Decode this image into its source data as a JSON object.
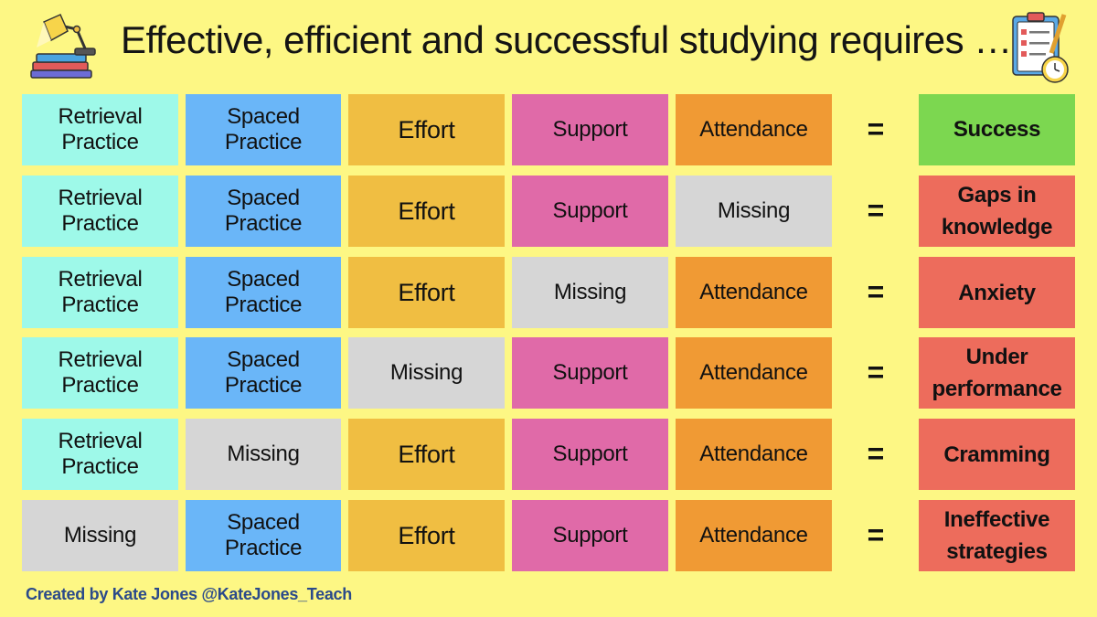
{
  "title": "Effective, efficient and successful studying requires …",
  "icons": {
    "left": "desk-lamp-books-icon",
    "right": "checklist-clipboard-clock-icon"
  },
  "equals_sign": "=",
  "rows": [
    {
      "cells": [
        "Retrieval Practice",
        "Spaced Practice",
        "Effort",
        "Support",
        "Attendance"
      ],
      "types": [
        "retrieval",
        "spaced",
        "effort",
        "support",
        "attendance"
      ],
      "result": "Success",
      "result_type": "success"
    },
    {
      "cells": [
        "Retrieval Practice",
        "Spaced Practice",
        "Effort",
        "Support",
        "Missing"
      ],
      "types": [
        "retrieval",
        "spaced",
        "effort",
        "support",
        "missing"
      ],
      "result": "Gaps in knowledge",
      "result_type": "bad"
    },
    {
      "cells": [
        "Retrieval Practice",
        "Spaced Practice",
        "Effort",
        "Missing",
        "Attendance"
      ],
      "types": [
        "retrieval",
        "spaced",
        "effort",
        "missing",
        "attendance"
      ],
      "result": "Anxiety",
      "result_type": "bad"
    },
    {
      "cells": [
        "Retrieval Practice",
        "Spaced Practice",
        "Missing",
        "Support",
        "Attendance"
      ],
      "types": [
        "retrieval",
        "spaced",
        "missing",
        "support",
        "attendance"
      ],
      "result": "Under performance",
      "result_type": "bad"
    },
    {
      "cells": [
        "Retrieval Practice",
        "Missing",
        "Effort",
        "Support",
        "Attendance"
      ],
      "types": [
        "retrieval",
        "missing",
        "effort",
        "support",
        "attendance"
      ],
      "result": "Cramming",
      "result_type": "bad"
    },
    {
      "cells": [
        "Missing",
        "Spaced Practice",
        "Effort",
        "Support",
        "Attendance"
      ],
      "types": [
        "missing",
        "spaced",
        "effort",
        "support",
        "attendance"
      ],
      "result": "Ineffective strategies",
      "result_type": "bad"
    }
  ],
  "colors": {
    "background": "#fdf784",
    "retrieval": "#9ef9e9",
    "spaced": "#6ab6f8",
    "effort": "#f0be42",
    "support": "#e06aa8",
    "attendance": "#f09a34",
    "missing": "#d6d6d6",
    "success": "#7cd750",
    "bad": "#ed6c5c"
  },
  "credit": "Created by Kate Jones @KateJones_Teach"
}
